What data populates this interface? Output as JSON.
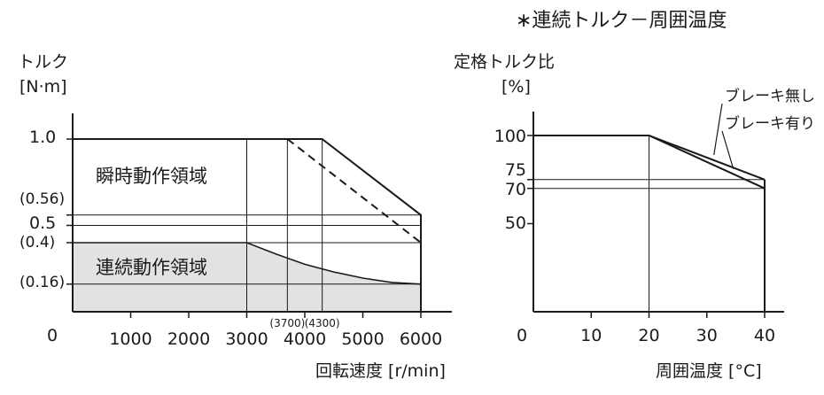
{
  "header": {
    "title": "∗連続トルク－周囲温度"
  },
  "chart_data": [
    {
      "type": "area",
      "ylabel": "トルク",
      "yunit": "[N·m]",
      "xlabel": "回転速度 [r/min]",
      "xlim": [
        0,
        6000
      ],
      "ylim": [
        0,
        1.15
      ],
      "origin_label": "0",
      "x_ticks": [
        1000,
        2000,
        3000,
        4000,
        5000,
        6000
      ],
      "x_tick_labels": [
        "1000",
        "2000",
        "3000",
        "4000",
        "5000",
        "6000"
      ],
      "y_ticks": [
        {
          "value": 1.0,
          "label": "1.0"
        },
        {
          "value": 0.56,
          "label": "(0.56)"
        },
        {
          "value": 0.5,
          "label": "0.5"
        },
        {
          "value": 0.4,
          "label": "(0.4)"
        },
        {
          "value": 0.16,
          "label": "(0.16)"
        }
      ],
      "annotations": [
        {
          "x": 3700,
          "label": "(3700)"
        },
        {
          "x": 4300,
          "label": "(4300)"
        }
      ],
      "gridlines_x": [
        3000,
        3700,
        4300
      ],
      "gridlines_y": [
        0.56,
        0.5,
        0.4,
        0.16
      ],
      "series": [
        {
          "name": "瞬時動作領域",
          "style": "solid",
          "x": [
            0,
            4300,
            6000,
            6000
          ],
          "y": [
            1.0,
            1.0,
            0.56,
            0
          ]
        },
        {
          "name": "",
          "style": "dashed",
          "x": [
            3700,
            6000
          ],
          "y": [
            1.0,
            0.4
          ]
        },
        {
          "name": "連続動作領域",
          "style": "filled",
          "x": [
            0,
            3000,
            3500,
            4000,
            4500,
            5000,
            5500,
            6000
          ],
          "y": [
            0.4,
            0.4,
            0.335,
            0.275,
            0.23,
            0.195,
            0.17,
            0.16
          ]
        }
      ],
      "colors": {
        "fill": "#e2e2e2",
        "line": "#1a1a1a"
      }
    },
    {
      "type": "line",
      "ylabel": "定格トルク比",
      "yunit": "[%]",
      "xlabel": "周囲温度 [°C]",
      "xlim": [
        0,
        40
      ],
      "ylim": [
        0,
        110
      ],
      "origin_label": "0",
      "x_ticks": [
        10,
        20,
        30,
        40
      ],
      "x_tick_labels": [
        "10",
        "20",
        "30",
        "40"
      ],
      "y_ticks": [
        {
          "value": 100,
          "label": "100"
        },
        {
          "value": 75,
          "label": "75"
        },
        {
          "value": 70,
          "label": "70"
        },
        {
          "value": 50,
          "label": "50"
        }
      ],
      "gridlines_x": [
        20
      ],
      "gridlines_y": [
        75,
        70
      ],
      "series": [
        {
          "name": "ブレーキ無し",
          "x": [
            0,
            20,
            40
          ],
          "y": [
            100,
            100,
            75
          ]
        },
        {
          "name": "ブレーキ有り",
          "x": [
            0,
            20,
            40
          ],
          "y": [
            100,
            100,
            70
          ]
        }
      ]
    }
  ]
}
